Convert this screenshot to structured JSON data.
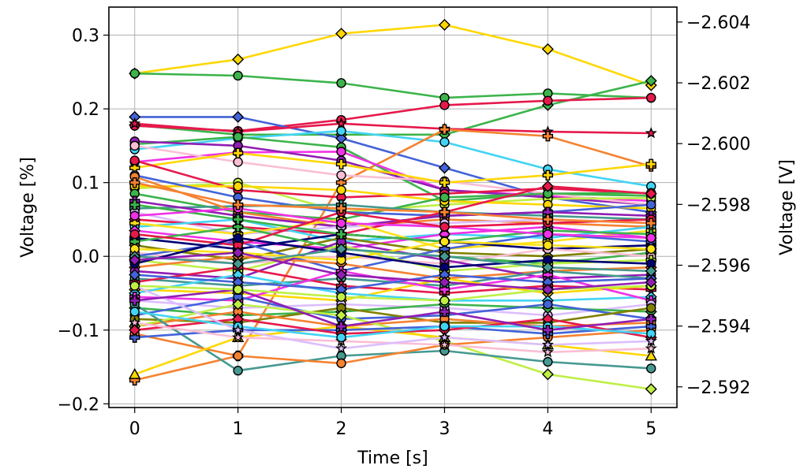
{
  "chart_data": {
    "type": "line",
    "xlabel": "Time [s]",
    "ylabel": "Voltage [%]",
    "y2label": "Voltage [V]",
    "x": [
      0,
      1,
      2,
      3,
      4,
      5
    ],
    "xlim": [
      -0.25,
      5.25
    ],
    "ylim": [
      -0.205,
      0.338
    ],
    "y2lim": [
      -2.59132,
      -2.60449
    ],
    "x_ticks": [
      "0",
      "1",
      "2",
      "3",
      "4",
      "5"
    ],
    "y_ticks": [
      -0.2,
      -0.1,
      0.0,
      0.1,
      0.2,
      0.3
    ],
    "y_tick_labels": [
      "−0.2",
      "−0.1",
      "0.0",
      "0.1",
      "0.2",
      "0.3"
    ],
    "y2_ticks": [
      -2.604,
      -2.602,
      -2.6,
      -2.598,
      -2.596,
      -2.594,
      -2.592
    ],
    "y2_tick_labels": [
      "−2.604",
      "−2.602",
      "−2.600",
      "−2.598",
      "−2.596",
      "−2.594",
      "−2.592"
    ],
    "grid": true,
    "series": [
      {
        "color": "#ffd700",
        "marker": "diamond",
        "values": [
          0.248,
          0.267,
          0.302,
          0.314,
          0.281,
          0.232
        ]
      },
      {
        "color": "#3cb44b",
        "marker": "circle",
        "values": [
          0.248,
          0.245,
          0.235,
          0.215,
          0.221,
          0.215
        ]
      },
      {
        "color": "#3cb44b",
        "marker": "diamond",
        "values": [
          0.178,
          0.165,
          0.165,
          0.165,
          0.205,
          0.238
        ]
      },
      {
        "color": "#e6194b",
        "marker": "circle",
        "values": [
          0.177,
          0.17,
          0.185,
          0.205,
          0.211,
          0.215
        ]
      },
      {
        "color": "#4363d8",
        "marker": "diamond",
        "values": [
          0.189,
          0.189,
          0.16,
          0.12,
          0.08,
          0.06
        ]
      },
      {
        "color": "#e6194b",
        "marker": "star",
        "values": [
          0.18,
          0.169,
          0.18,
          0.173,
          0.169,
          0.167
        ]
      },
      {
        "color": "#42d4f4",
        "marker": "circle",
        "values": [
          0.145,
          0.16,
          0.17,
          0.155,
          0.118,
          0.095
        ]
      },
      {
        "color": "#f58231",
        "marker": "plus",
        "values": [
          -0.168,
          -0.135,
          0.1,
          0.172,
          0.163,
          0.122
        ]
      },
      {
        "color": "#3cb44b",
        "marker": "circle",
        "values": [
          0.152,
          0.162,
          0.148,
          0.075,
          0.085,
          0.082
        ]
      },
      {
        "color": "#f032e6",
        "marker": "circle",
        "values": [
          0.128,
          0.141,
          0.142,
          0.09,
          0.082,
          0.075
        ]
      },
      {
        "color": "#911eb4",
        "marker": "circle",
        "values": [
          0.156,
          0.15,
          0.13,
          0.09,
          0.08,
          0.07
        ]
      },
      {
        "color": "#fabed4",
        "marker": "circle",
        "values": [
          0.15,
          0.128,
          0.11,
          0.102,
          0.085,
          0.07
        ]
      },
      {
        "color": "#ffd700",
        "marker": "plus",
        "values": [
          0.12,
          0.14,
          0.125,
          0.1,
          0.11,
          0.125
        ]
      },
      {
        "color": "#bfef45",
        "marker": "circle",
        "values": [
          0.092,
          0.1,
          0.06,
          0.07,
          0.078,
          0.079
        ]
      },
      {
        "color": "#e6194b",
        "marker": "circle",
        "values": [
          0.13,
          0.09,
          0.08,
          0.085,
          0.092,
          0.085
        ]
      },
      {
        "color": "#ffd700",
        "marker": "circle",
        "values": [
          0.095,
          0.095,
          0.09,
          0.075,
          0.07,
          0.065
        ]
      },
      {
        "color": "#3cb44b",
        "marker": "circle",
        "values": [
          0.085,
          0.06,
          0.05,
          0.08,
          0.085,
          0.086
        ]
      },
      {
        "color": "#4363d8",
        "marker": "circle",
        "values": [
          0.11,
          0.08,
          0.06,
          0.055,
          0.06,
          0.07
        ]
      },
      {
        "color": "#469990",
        "marker": "plus",
        "values": [
          0.065,
          0.068,
          0.07,
          0.06,
          0.055,
          0.05
        ]
      },
      {
        "color": "#f58231",
        "marker": "circle",
        "values": [
          0.108,
          0.06,
          0.04,
          0.05,
          0.045,
          0.04
        ]
      },
      {
        "color": "#911eb4",
        "marker": "plus",
        "values": [
          0.075,
          0.055,
          0.04,
          0.055,
          0.06,
          0.055
        ]
      },
      {
        "color": "#dcbeff",
        "marker": "circle",
        "values": [
          0.06,
          0.03,
          0.04,
          0.045,
          0.05,
          0.045
        ]
      },
      {
        "color": "#e6194b",
        "marker": "diamond",
        "values": [
          0.05,
          0.04,
          0.03,
          0.06,
          0.095,
          0.085
        ]
      },
      {
        "color": "#42d4f4",
        "marker": "circle",
        "values": [
          0.04,
          0.05,
          0.02,
          0.03,
          0.025,
          0.04
        ]
      },
      {
        "color": "#ffe119",
        "marker": "plus",
        "values": [
          0.045,
          0.03,
          0.05,
          0.01,
          0.02,
          0.035
        ]
      },
      {
        "color": "#f032e6",
        "marker": "diamond",
        "values": [
          0.035,
          0.02,
          0.01,
          0.03,
          0.04,
          0.025
        ]
      },
      {
        "color": "#000075",
        "marker": "plus",
        "values": [
          0.025,
          0.01,
          0.03,
          0.02,
          0.01,
          0.015
        ]
      },
      {
        "color": "#808000",
        "marker": "diamond",
        "values": [
          0.015,
          -0.005,
          0.025,
          0.005,
          0.0,
          0.01
        ]
      },
      {
        "color": "#3cb44b",
        "marker": "plus",
        "values": [
          0.02,
          0.04,
          0.01,
          0.0,
          -0.01,
          0.005
        ]
      },
      {
        "color": "#fabed4",
        "marker": "circle",
        "values": [
          0.005,
          -0.01,
          0.0,
          -0.01,
          0.01,
          0.0
        ]
      },
      {
        "color": "#4363d8",
        "marker": "plus",
        "values": [
          0.0,
          0.02,
          -0.02,
          0.01,
          0.03,
          0.02
        ]
      },
      {
        "color": "#bfef45",
        "marker": "plus",
        "values": [
          -0.005,
          -0.02,
          0.015,
          -0.02,
          -0.01,
          -0.005
        ]
      },
      {
        "color": "#f58231",
        "marker": "diamond",
        "values": [
          -0.015,
          0.0,
          -0.01,
          -0.03,
          -0.02,
          -0.015
        ]
      },
      {
        "color": "#911eb4",
        "marker": "circle",
        "values": [
          -0.02,
          -0.03,
          0.02,
          -0.005,
          -0.03,
          -0.025
        ]
      },
      {
        "color": "#469990",
        "marker": "circle",
        "values": [
          -0.03,
          -0.04,
          -0.03,
          -0.04,
          -0.02,
          -0.03
        ]
      },
      {
        "color": "#e6194b",
        "marker": "plus",
        "values": [
          -0.035,
          -0.015,
          -0.04,
          -0.05,
          -0.04,
          -0.045
        ]
      },
      {
        "color": "#ffd700",
        "marker": "diamond",
        "values": [
          -0.045,
          -0.05,
          -0.06,
          -0.03,
          -0.05,
          -0.04
        ]
      },
      {
        "color": "#42d4f4",
        "marker": "diamond",
        "values": [
          -0.05,
          -0.025,
          -0.05,
          -0.06,
          -0.06,
          -0.055
        ]
      },
      {
        "color": "#f032e6",
        "marker": "plus",
        "values": [
          -0.055,
          -0.06,
          -0.02,
          -0.045,
          -0.025,
          -0.06
        ]
      },
      {
        "color": "#dcbeff",
        "marker": "circle",
        "values": [
          -0.06,
          -0.07,
          -0.065,
          -0.07,
          -0.08,
          -0.065
        ]
      },
      {
        "color": "#3cb44b",
        "marker": "diamond",
        "values": [
          -0.07,
          -0.08,
          -0.075,
          -0.065,
          -0.07,
          -0.075
        ]
      },
      {
        "color": "#4363d8",
        "marker": "circle",
        "values": [
          -0.08,
          -0.055,
          -0.085,
          -0.08,
          -0.065,
          -0.085
        ]
      },
      {
        "color": "#808000",
        "marker": "circle",
        "values": [
          -0.085,
          -0.09,
          -0.07,
          -0.09,
          -0.09,
          -0.07
        ]
      },
      {
        "color": "#f58231",
        "marker": "circle",
        "values": [
          -0.095,
          -0.075,
          -0.095,
          -0.085,
          -0.095,
          -0.09
        ]
      },
      {
        "color": "#bfef45",
        "marker": "diamond",
        "values": [
          -0.095,
          -0.065,
          -0.08,
          -0.115,
          -0.16,
          -0.18
        ]
      },
      {
        "color": "#469990",
        "marker": "circle",
        "values": [
          -0.065,
          -0.155,
          -0.135,
          -0.128,
          -0.143,
          -0.152
        ]
      },
      {
        "color": "#f58231",
        "marker": "circle",
        "values": [
          -0.105,
          -0.135,
          -0.145,
          -0.12,
          -0.11,
          -0.1
        ]
      },
      {
        "color": "#ffd700",
        "marker": "triangle",
        "values": [
          -0.16,
          -0.11,
          -0.095,
          -0.11,
          -0.12,
          -0.135
        ]
      },
      {
        "color": "#4363d8",
        "marker": "plus",
        "values": [
          -0.11,
          -0.1,
          -0.1,
          -0.095,
          -0.105,
          -0.095
        ]
      },
      {
        "color": "#e6194b",
        "marker": "diamond",
        "values": [
          -0.1,
          -0.085,
          -0.105,
          -0.1,
          -0.085,
          -0.11
        ]
      },
      {
        "color": "#fabed4",
        "marker": "star",
        "values": [
          -0.09,
          -0.11,
          -0.115,
          -0.12,
          -0.13,
          -0.125
        ]
      },
      {
        "color": "#42d4f4",
        "marker": "circle",
        "values": [
          -0.075,
          -0.095,
          -0.11,
          -0.095,
          -0.095,
          -0.105
        ]
      },
      {
        "color": "#dcbeff",
        "marker": "star",
        "values": [
          -0.04,
          -0.1,
          -0.125,
          -0.11,
          -0.12,
          -0.115
        ]
      },
      {
        "color": "#911eb4",
        "marker": "plus",
        "values": [
          -0.06,
          -0.045,
          -0.095,
          -0.075,
          -0.1,
          -0.085
        ]
      },
      {
        "color": "#3cb44b",
        "marker": "plus",
        "values": [
          0.07,
          0.05,
          0.03,
          0.02,
          0.035,
          0.03
        ]
      },
      {
        "color": "#f032e6",
        "marker": "circle",
        "values": [
          0.055,
          0.065,
          0.045,
          0.04,
          0.03,
          0.025
        ]
      },
      {
        "color": "#e6194b",
        "marker": "circle",
        "values": [
          0.03,
          0.015,
          0.06,
          0.04,
          0.045,
          0.05
        ]
      },
      {
        "color": "#ffe119",
        "marker": "circle",
        "values": [
          0.01,
          0.005,
          -0.005,
          0.02,
          0.015,
          0.01
        ]
      },
      {
        "color": "#000075",
        "marker": "circle",
        "values": [
          -0.01,
          0.025,
          0.005,
          -0.015,
          -0.005,
          -0.01
        ]
      },
      {
        "color": "#4363d8",
        "marker": "diamond",
        "values": [
          -0.025,
          -0.035,
          -0.045,
          -0.025,
          -0.035,
          -0.03
        ]
      },
      {
        "color": "#bfef45",
        "marker": "circle",
        "values": [
          -0.04,
          -0.045,
          -0.055,
          -0.06,
          -0.045,
          -0.04
        ]
      },
      {
        "color": "#f58231",
        "marker": "plus",
        "values": [
          0.1,
          0.07,
          0.065,
          0.06,
          0.05,
          0.045
        ]
      },
      {
        "color": "#469990",
        "marker": "diamond",
        "values": [
          0.0,
          -0.01,
          0.01,
          0.0,
          -0.015,
          -0.02
        ]
      },
      {
        "color": "#911eb4",
        "marker": "diamond",
        "values": [
          -0.005,
          0.005,
          -0.025,
          -0.035,
          -0.045,
          -0.035
        ]
      }
    ]
  }
}
